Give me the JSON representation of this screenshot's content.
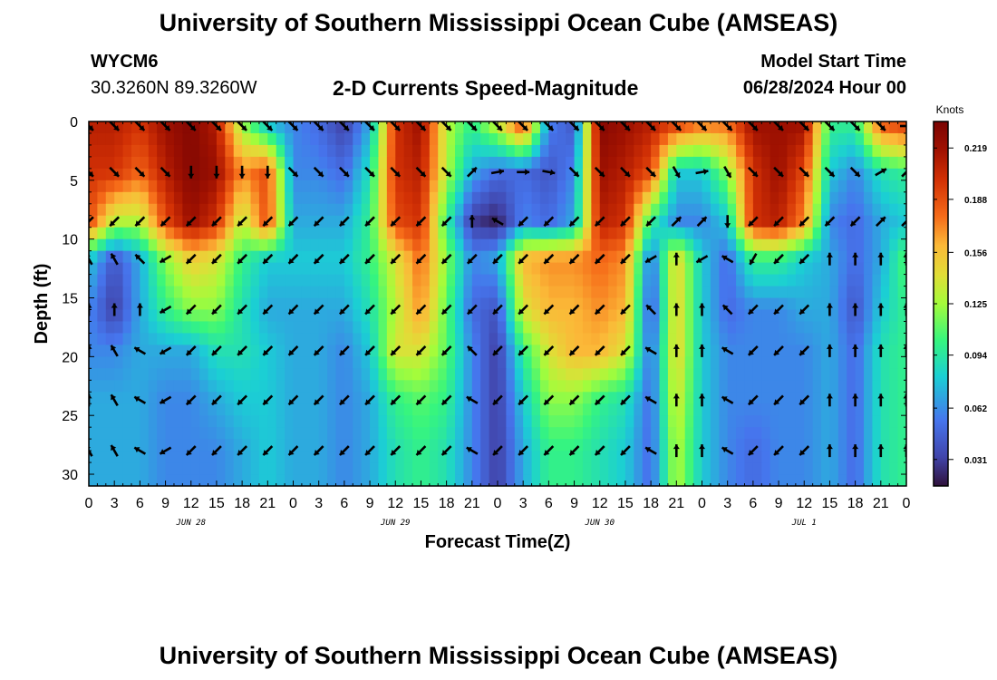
{
  "header": {
    "title": "University of Southern Mississippi Ocean Cube (AMSEAS)",
    "station_id": "WYCM6",
    "coordinates": "30.3260N  89.3260W",
    "plot_title": "2-D Currents Speed-Magnitude",
    "model_start_label": "Model Start Time",
    "model_start_value": "06/28/2024 Hour 00"
  },
  "footer": {
    "title": "University of Southern Mississippi Ocean Cube (AMSEAS)"
  },
  "chart_data": {
    "type": "heatmap",
    "title": "2-D Currents Speed-Magnitude",
    "xlabel": "Forecast Time(Z)",
    "ylabel": "Depth (ft)",
    "x_ticks": [
      "0",
      "3",
      "6",
      "9",
      "12",
      "15",
      "18",
      "21",
      "0",
      "3",
      "6",
      "9",
      "12",
      "15",
      "18",
      "21",
      "0",
      "3",
      "6",
      "9",
      "12",
      "15",
      "18",
      "21",
      "0",
      "3",
      "6",
      "9",
      "12",
      "15",
      "18",
      "21",
      "0"
    ],
    "x_range_hours": [
      0,
      96
    ],
    "date_labels": [
      {
        "label": "JUN 28",
        "hour": 12
      },
      {
        "label": "JUN 29",
        "hour": 36
      },
      {
        "label": "JUN 30",
        "hour": 60
      },
      {
        "label": "JUL 1",
        "hour": 84
      }
    ],
    "y_ticks": [
      "0",
      "5",
      "10",
      "15",
      "20",
      "25",
      "30"
    ],
    "y_range_ft": [
      0,
      31
    ],
    "colorbar": {
      "unit": "Knots",
      "ticks": [
        "0.219",
        "0.188",
        "0.156",
        "0.125",
        "0.094",
        "0.062",
        "0.031"
      ],
      "range": [
        0.015,
        0.235
      ]
    },
    "depth_levels_ft": [
      0,
      4.3,
      8.5,
      11.7,
      16,
      19.5,
      23.7,
      28
    ],
    "grid_columns_hours": [
      0,
      3,
      6,
      9,
      12,
      15,
      18,
      21,
      24,
      27,
      30,
      33,
      36,
      39,
      42,
      45,
      48,
      51,
      54,
      57,
      60,
      63,
      66,
      69,
      72,
      75,
      78,
      81,
      84,
      87,
      90,
      93,
      96
    ],
    "speed_knots": [
      [
        0.21,
        0.21,
        0.2,
        0.22,
        0.23,
        0.21,
        0.12,
        0.07,
        0.06,
        0.05,
        0.03,
        0.07,
        0.2,
        0.22,
        0.13,
        0.1,
        0.14,
        0.2,
        0.06,
        0.04,
        0.23,
        0.22,
        0.21,
        0.2,
        0.18,
        0.18,
        0.22,
        0.22,
        0.22,
        0.1,
        0.1,
        0.19,
        0.2
      ],
      [
        0.2,
        0.2,
        0.18,
        0.21,
        0.23,
        0.22,
        0.17,
        0.19,
        0.06,
        0.06,
        0.05,
        0.09,
        0.2,
        0.21,
        0.13,
        0.07,
        0.05,
        0.05,
        0.04,
        0.06,
        0.22,
        0.21,
        0.19,
        0.08,
        0.08,
        0.12,
        0.2,
        0.22,
        0.19,
        0.08,
        0.06,
        0.09,
        0.1
      ],
      [
        0.19,
        0.13,
        0.13,
        0.19,
        0.22,
        0.2,
        0.13,
        0.19,
        0.07,
        0.07,
        0.07,
        0.1,
        0.19,
        0.2,
        0.1,
        0.03,
        0.02,
        0.06,
        0.05,
        0.07,
        0.21,
        0.2,
        0.1,
        0.06,
        0.06,
        0.08,
        0.2,
        0.21,
        0.17,
        0.06,
        0.05,
        0.07,
        0.08
      ],
      [
        0.08,
        0.04,
        0.07,
        0.12,
        0.15,
        0.14,
        0.1,
        0.08,
        0.08,
        0.08,
        0.08,
        0.1,
        0.14,
        0.18,
        0.12,
        0.06,
        0.07,
        0.16,
        0.17,
        0.17,
        0.18,
        0.17,
        0.05,
        0.15,
        0.08,
        0.05,
        0.1,
        0.1,
        0.08,
        0.07,
        0.05,
        0.07,
        0.11
      ],
      [
        0.06,
        0.03,
        0.07,
        0.1,
        0.12,
        0.12,
        0.09,
        0.07,
        0.07,
        0.07,
        0.07,
        0.09,
        0.13,
        0.17,
        0.11,
        0.05,
        0.04,
        0.14,
        0.16,
        0.16,
        0.17,
        0.16,
        0.04,
        0.15,
        0.08,
        0.05,
        0.06,
        0.06,
        0.07,
        0.07,
        0.04,
        0.08,
        0.1
      ],
      [
        0.06,
        0.06,
        0.07,
        0.07,
        0.07,
        0.09,
        0.09,
        0.08,
        0.07,
        0.07,
        0.06,
        0.08,
        0.14,
        0.14,
        0.11,
        0.06,
        0.03,
        0.1,
        0.14,
        0.16,
        0.16,
        0.14,
        0.05,
        0.15,
        0.08,
        0.06,
        0.06,
        0.06,
        0.06,
        0.07,
        0.05,
        0.09,
        0.1
      ],
      [
        0.07,
        0.07,
        0.07,
        0.06,
        0.06,
        0.07,
        0.08,
        0.08,
        0.07,
        0.07,
        0.06,
        0.07,
        0.1,
        0.11,
        0.1,
        0.06,
        0.03,
        0.08,
        0.12,
        0.12,
        0.1,
        0.09,
        0.05,
        0.14,
        0.08,
        0.06,
        0.06,
        0.06,
        0.06,
        0.07,
        0.05,
        0.09,
        0.1
      ],
      [
        0.07,
        0.07,
        0.07,
        0.06,
        0.06,
        0.06,
        0.07,
        0.08,
        0.07,
        0.07,
        0.06,
        0.07,
        0.09,
        0.1,
        0.09,
        0.06,
        0.03,
        0.07,
        0.1,
        0.1,
        0.09,
        0.08,
        0.05,
        0.13,
        0.08,
        0.06,
        0.05,
        0.06,
        0.06,
        0.07,
        0.05,
        0.09,
        0.1
      ]
    ],
    "direction_deg": [
      [
        135,
        135,
        135,
        135,
        135,
        135,
        135,
        135,
        135,
        135,
        135,
        135,
        135,
        135,
        135,
        135,
        135,
        135,
        135,
        135,
        135,
        135,
        135,
        135,
        135,
        135,
        135,
        135,
        135,
        135,
        135,
        135,
        90
      ],
      [
        135,
        135,
        135,
        135,
        180,
        180,
        180,
        180,
        135,
        135,
        135,
        135,
        135,
        135,
        135,
        45,
        80,
        90,
        100,
        135,
        135,
        135,
        135,
        150,
        80,
        150,
        135,
        135,
        135,
        135,
        135,
        60,
        45
      ],
      [
        225,
        225,
        225,
        225,
        225,
        225,
        225,
        225,
        225,
        225,
        225,
        225,
        225,
        225,
        225,
        0,
        300,
        225,
        225,
        225,
        225,
        225,
        225,
        45,
        45,
        180,
        225,
        225,
        225,
        225,
        225,
        45,
        45
      ],
      [
        330,
        330,
        315,
        240,
        225,
        225,
        225,
        225,
        225,
        225,
        225,
        225,
        225,
        225,
        225,
        225,
        225,
        225,
        225,
        225,
        225,
        225,
        240,
        0,
        240,
        300,
        210,
        225,
        225,
        0,
        0,
        0,
        0
      ],
      [
        0,
        0,
        0,
        240,
        225,
        225,
        225,
        225,
        225,
        225,
        225,
        225,
        225,
        225,
        225,
        225,
        225,
        225,
        225,
        225,
        225,
        225,
        315,
        0,
        0,
        315,
        225,
        225,
        225,
        0,
        0,
        0,
        0
      ],
      [
        0,
        330,
        300,
        240,
        225,
        225,
        225,
        225,
        225,
        225,
        225,
        225,
        225,
        225,
        225,
        315,
        225,
        225,
        225,
        225,
        225,
        225,
        300,
        0,
        0,
        300,
        225,
        225,
        225,
        0,
        0,
        0,
        0
      ],
      [
        0,
        330,
        300,
        240,
        225,
        225,
        225,
        225,
        225,
        225,
        225,
        225,
        225,
        225,
        225,
        300,
        225,
        225,
        225,
        225,
        225,
        225,
        300,
        0,
        0,
        300,
        225,
        225,
        225,
        0,
        0,
        0,
        0
      ],
      [
        330,
        330,
        300,
        240,
        225,
        225,
        225,
        225,
        225,
        225,
        225,
        225,
        225,
        225,
        225,
        300,
        225,
        225,
        225,
        225,
        225,
        225,
        300,
        0,
        0,
        300,
        225,
        225,
        225,
        0,
        0,
        0,
        0
      ]
    ]
  }
}
